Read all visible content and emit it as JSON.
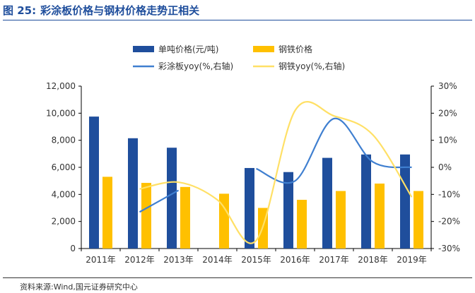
{
  "figure": {
    "label": "图 25:",
    "title": "彩涂板价格与钢材价格走势正相关"
  },
  "source": "资料来源:Wind,国元证券研究中心",
  "colors": {
    "bar_price": "#1f4e9c",
    "bar_steel": "#ffc000",
    "line_coated": "#3f7fd0",
    "line_steel": "#ffe066",
    "axis": "#000000"
  },
  "chart_data": {
    "type": "bar",
    "title": "",
    "categories": [
      "2011年",
      "2012年",
      "2013年",
      "2014年",
      "2015年",
      "2016年",
      "2017年",
      "2018年",
      "2019年"
    ],
    "ylim": [
      0,
      12000
    ],
    "y_ticks": [
      "0",
      "2,000",
      "4,000",
      "6,000",
      "8,000",
      "10,000",
      "12,000"
    ],
    "y2lim": [
      -30,
      30
    ],
    "y2_ticks": [
      "-30%",
      "-20%",
      "-10%",
      "0%",
      "10%",
      "20%",
      "30%"
    ],
    "series": [
      {
        "name": "单吨价格(元/吨)",
        "kind": "bar",
        "axis": "left",
        "values": [
          9750,
          8150,
          7450,
          null,
          5950,
          5650,
          6700,
          6950,
          6950
        ]
      },
      {
        "name": "钢铁价格",
        "kind": "bar",
        "axis": "left",
        "values": [
          5300,
          4850,
          4550,
          4050,
          3000,
          3600,
          4250,
          4800,
          4250
        ]
      },
      {
        "name": "彩涂板yoy(%,右轴)",
        "kind": "line",
        "axis": "right",
        "values": [
          null,
          -16.5,
          -8.5,
          null,
          -0.5,
          -5,
          18,
          2,
          0
        ]
      },
      {
        "name": "钢铁yoy(%,右轴)",
        "kind": "line",
        "axis": "right",
        "values": [
          null,
          -8,
          -5.5,
          -12,
          -27,
          21,
          19,
          12,
          -11
        ]
      }
    ],
    "legend": [
      "单吨价格(元/吨)",
      "钢铁价格",
      "彩涂板yoy(%,右轴)",
      "钢铁yoy(%,右轴)"
    ]
  }
}
